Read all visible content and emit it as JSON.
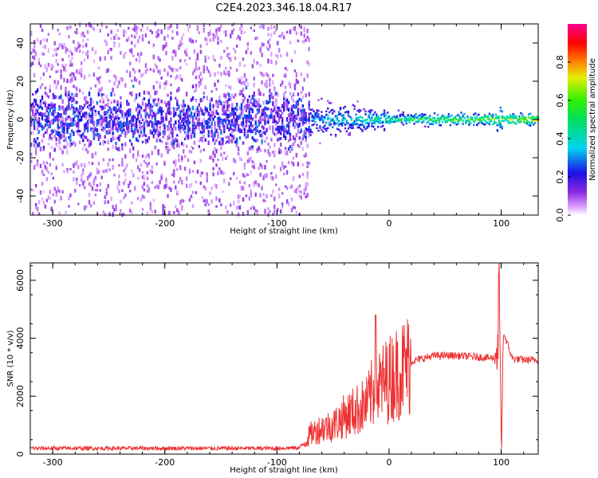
{
  "title": "C2E4.2023.346.18.04.R17",
  "chart_data": [
    {
      "type": "heatmap",
      "xlabel": "Height of straight line (km)",
      "ylabel": "Frequency (Hz)",
      "xlim": [
        -320,
        133
      ],
      "ylim": [
        -50,
        50
      ],
      "x_ticks": [
        -300,
        -200,
        -100,
        0,
        100
      ],
      "y_ticks": [
        -40,
        -20,
        0,
        20,
        40
      ],
      "colorbar": {
        "label": "Normalized spectral amplitude",
        "range": [
          0,
          1
        ],
        "ticks": [
          0.0,
          0.2,
          0.4,
          0.6,
          0.8
        ],
        "colormap": "rainbow"
      },
      "features": [
        {
          "x_range": [
            -320,
            -70
          ],
          "description": "broadband noise spread over full frequency range, amplitude ~0.05-0.3, denser near 0 Hz"
        },
        {
          "x_range": [
            -70,
            0
          ],
          "description": "narrowing band around 0 Hz, amplitude ~0.4-0.6"
        },
        {
          "x_range": [
            0,
            133
          ],
          "description": "narrow band near 0 Hz, amplitude up to ~0.9, disturbance near 98 km"
        }
      ]
    },
    {
      "type": "line",
      "xlabel": "Height of straight line (km)",
      "ylabel": "SNR (10 * v/v)",
      "xlim": [
        -320,
        133
      ],
      "ylim": [
        0,
        6600
      ],
      "x_ticks": [
        -300,
        -200,
        -100,
        0,
        100
      ],
      "y_ticks": [
        0,
        2000,
        4000,
        6000
      ],
      "series": [
        {
          "color": "#ee3333",
          "x": [
            -320,
            -300,
            -250,
            -200,
            -150,
            -100,
            -80,
            -75,
            -70,
            -60,
            -50,
            -40,
            -30,
            -20,
            -15,
            -10,
            0,
            10,
            20,
            30,
            40,
            60,
            80,
            95,
            98,
            100,
            102,
            110,
            120,
            133
          ],
          "y": [
            200,
            200,
            200,
            200,
            200,
            200,
            220,
            400,
            700,
            900,
            1000,
            1300,
            1500,
            1700,
            2100,
            2300,
            2600,
            2900,
            3200,
            3300,
            3400,
            3400,
            3350,
            3300,
            4500,
            300,
            4200,
            3300,
            3250,
            3250
          ]
        }
      ],
      "annotations": [
        {
          "x": -12,
          "y": 4800,
          "description": "spike"
        },
        {
          "x": 98,
          "y": 6600,
          "description": "large oscillation reaching top of axis"
        }
      ]
    }
  ],
  "colors": {
    "snr_line": "#ee3333"
  }
}
